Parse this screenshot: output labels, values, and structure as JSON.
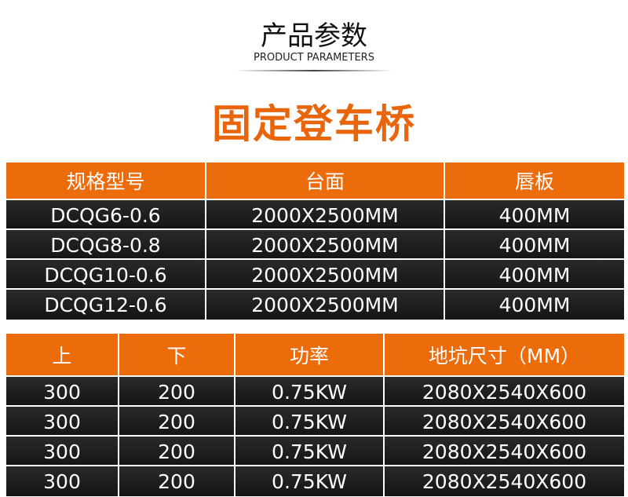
{
  "header": {
    "title": "产品参数",
    "subtitle": "PRODUCT PARAMETERS"
  },
  "title": "固定登车桥",
  "tables": [
    {
      "columns": [
        "规格型号",
        "台面",
        "唇板"
      ],
      "rows": [
        [
          "DCQG6-0.6",
          "2000X2500MM",
          "400MM"
        ],
        [
          "DCQG8-0.8",
          "2000X2500MM",
          "400MM"
        ],
        [
          "DCQG10-0.6",
          "2000X2500MM",
          "400MM"
        ],
        [
          "DCQG12-0.6",
          "2000X2500MM",
          "400MM"
        ]
      ]
    },
    {
      "columns": [
        "上",
        "下",
        "功率",
        "地坑尺寸（MM）"
      ],
      "rows": [
        [
          "300",
          "200",
          "0.75KW",
          "2080X2540X600"
        ],
        [
          "300",
          "200",
          "0.75KW",
          "2080X2540X600"
        ],
        [
          "300",
          "200",
          "0.75KW",
          "2080X2540X600"
        ],
        [
          "300",
          "200",
          "0.75KW",
          "2080X2540X600"
        ]
      ]
    }
  ]
}
